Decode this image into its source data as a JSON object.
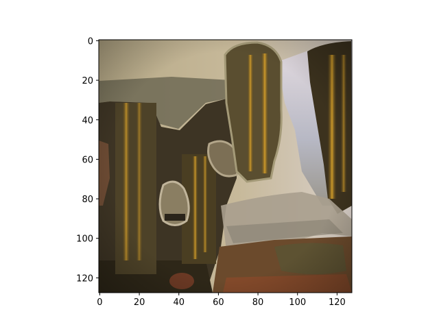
{
  "chart_data": {
    "type": "heatmap",
    "title": "",
    "xlabel": "",
    "ylabel": "",
    "image_size": [
      128,
      128
    ],
    "xlim": [
      -0.5,
      127.5
    ],
    "ylim": [
      127.5,
      -0.5
    ],
    "x_ticks": [
      0,
      20,
      40,
      60,
      80,
      100,
      120
    ],
    "y_ticks": [
      0,
      20,
      40,
      60,
      80,
      100,
      120
    ],
    "x_tick_labels": [
      "0",
      "20",
      "40",
      "60",
      "80",
      "100",
      "120"
    ],
    "y_tick_labels": [
      "0",
      "20",
      "40",
      "60",
      "80",
      "100",
      "120"
    ],
    "grid": false,
    "colors": {
      "dark_olive": "#3a3322",
      "olive_brown": "#5c5238",
      "tan": "#b4a88a",
      "grey_green": "#8f8b74",
      "gold": "#c9951e",
      "lavender": "#c9c4d2",
      "rust": "#8a4a2a"
    }
  }
}
